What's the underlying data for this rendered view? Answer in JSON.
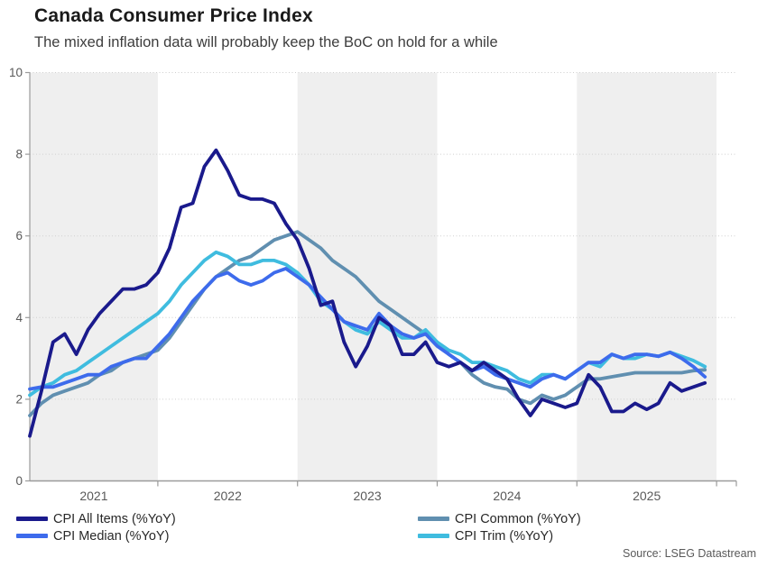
{
  "header": {
    "title": "Canada Consumer Price Index",
    "subtitle": "The mixed inflation data will probably keep the BoC on hold for a while"
  },
  "source_note": "Source: LSEG Datastream",
  "colors": {
    "all_items": "#1a1a8c",
    "median": "#3d6bec",
    "common": "#608fb0",
    "trim": "#3fbcdf",
    "band": "#efefef",
    "grid": "#cfcfcf",
    "axis": "#9b9b9b",
    "axis_text": "#595959"
  },
  "legend": {
    "items": [
      {
        "label": "CPI All Items (%YoY)",
        "series": "all_items"
      },
      {
        "label": "CPI Median (%YoY)",
        "series": "median"
      },
      {
        "label": "CPI Common (%YoY)",
        "series": "common"
      },
      {
        "label": "CPI Trim (%YoY)",
        "series": "trim"
      }
    ]
  },
  "chart_data": {
    "type": "line",
    "frequency": "monthly",
    "x_range": [
      "2021-02",
      "2025-12"
    ],
    "x_tick_labels": [
      "2021",
      "2022",
      "2023",
      "2024",
      "2025"
    ],
    "ylim": [
      0,
      10
    ],
    "y_ticks": [
      0,
      2,
      4,
      6,
      8,
      10
    ],
    "grid": "dotted-horizontal",
    "background_bands": "alternating-year-shading (odd years shaded)",
    "legend_position": "bottom",
    "title": "Canada Consumer Price Index",
    "series": [
      {
        "name": "CPI All Items (%YoY)",
        "key": "all_items",
        "values": [
          1.1,
          2.2,
          3.4,
          3.6,
          3.1,
          3.7,
          4.1,
          4.4,
          4.7,
          4.7,
          4.8,
          5.1,
          5.7,
          6.7,
          6.8,
          7.7,
          8.1,
          7.6,
          7.0,
          6.9,
          6.9,
          6.8,
          6.3,
          5.9,
          5.2,
          4.3,
          4.4,
          3.4,
          2.8,
          3.3,
          4.0,
          3.8,
          3.1,
          3.1,
          3.4,
          2.9,
          2.8,
          2.9,
          2.7,
          2.9,
          2.7,
          2.5,
          2.0,
          1.6,
          2.0,
          1.9,
          1.8,
          1.9,
          2.6,
          2.3,
          1.7,
          1.7,
          1.9,
          1.75,
          1.9,
          2.4,
          2.2,
          2.3,
          2.4
        ]
      },
      {
        "name": "CPI Median (%YoY)",
        "key": "median",
        "values": [
          2.25,
          2.3,
          2.3,
          2.4,
          2.5,
          2.6,
          2.6,
          2.8,
          2.9,
          3.0,
          3.0,
          3.3,
          3.6,
          4.0,
          4.4,
          4.7,
          5.0,
          5.1,
          4.9,
          4.8,
          4.9,
          5.1,
          5.2,
          5.0,
          4.8,
          4.5,
          4.2,
          3.9,
          3.8,
          3.7,
          4.1,
          3.8,
          3.6,
          3.5,
          3.6,
          3.3,
          3.1,
          2.9,
          2.7,
          2.8,
          2.6,
          2.5,
          2.4,
          2.3,
          2.5,
          2.6,
          2.5,
          2.7,
          2.9,
          2.9,
          3.1,
          3.0,
          3.1,
          3.1,
          3.05,
          3.15,
          3.0,
          2.8,
          2.55
        ]
      },
      {
        "name": "CPI Common (%YoY)",
        "key": "common",
        "values": [
          1.6,
          1.9,
          2.1,
          2.2,
          2.3,
          2.4,
          2.6,
          2.7,
          2.9,
          3.0,
          3.1,
          3.2,
          3.5,
          3.9,
          4.3,
          4.7,
          5.0,
          5.2,
          5.4,
          5.5,
          5.7,
          5.9,
          6.0,
          6.1,
          5.9,
          5.7,
          5.4,
          5.2,
          5.0,
          4.7,
          4.4,
          4.2,
          4.0,
          3.8,
          3.6,
          3.4,
          3.1,
          2.9,
          2.6,
          2.4,
          2.3,
          2.25,
          2.0,
          1.9,
          2.1,
          2.0,
          2.1,
          2.3,
          2.5,
          2.5,
          2.55,
          2.6,
          2.65,
          2.65,
          2.65,
          2.65,
          2.65,
          2.7,
          2.72
        ]
      },
      {
        "name": "CPI Trim (%YoY)",
        "key": "trim",
        "values": [
          2.1,
          2.3,
          2.4,
          2.6,
          2.7,
          2.9,
          3.1,
          3.3,
          3.5,
          3.7,
          3.9,
          4.1,
          4.4,
          4.8,
          5.1,
          5.4,
          5.6,
          5.5,
          5.3,
          5.3,
          5.4,
          5.4,
          5.3,
          5.1,
          4.8,
          4.4,
          4.2,
          3.9,
          3.7,
          3.6,
          3.9,
          3.7,
          3.5,
          3.5,
          3.7,
          3.4,
          3.2,
          3.1,
          2.9,
          2.9,
          2.8,
          2.7,
          2.5,
          2.4,
          2.6,
          2.6,
          2.5,
          2.7,
          2.9,
          2.8,
          3.1,
          3.0,
          3.0,
          3.1,
          3.05,
          3.15,
          3.05,
          2.95,
          2.8
        ]
      }
    ]
  }
}
